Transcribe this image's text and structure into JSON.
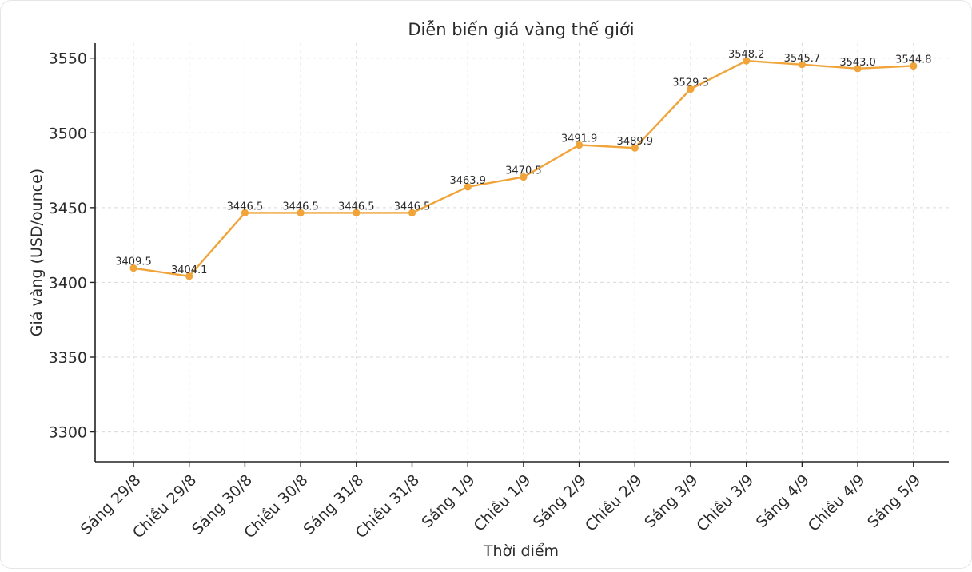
{
  "chart_data": {
    "type": "line",
    "title": "Diễn biến giá vàng thế giới",
    "xlabel": "Thời điểm",
    "ylabel": "Giá vàng (USD/ounce)",
    "categories": [
      "Sáng 29/8",
      "Chiều 29/8",
      "Sáng 30/8",
      "Chiều 30/8",
      "Sáng 31/8",
      "Chiều 31/8",
      "Sáng 1/9",
      "Chiều 1/9",
      "Sáng 2/9",
      "Chiều 2/9",
      "Sáng 3/9",
      "Chiều 3/9",
      "Sáng 4/9",
      "Chiều 4/9",
      "Sáng 5/9"
    ],
    "series": [
      {
        "values": [
          3409.5,
          3404.1,
          3446.5,
          3446.5,
          3446.5,
          3446.5,
          3463.9,
          3470.5,
          3491.9,
          3489.9,
          3529.3,
          3548.2,
          3545.7,
          3543.0,
          3544.8
        ],
        "color": "#F0A43A"
      }
    ],
    "data_labels": [
      "3409.5",
      "3404.1",
      "3446.5",
      "3446.5",
      "3446.5",
      "3446.5",
      "3463.9",
      "3470.5",
      "3491.9",
      "3489.9",
      "3529.3",
      "3548.2",
      "3545.7",
      "3543.0",
      "3544.8"
    ],
    "yticks": [
      3300,
      3350,
      3400,
      3450,
      3500,
      3550
    ],
    "ylim": [
      3280,
      3560
    ],
    "grid": true,
    "legend": "none"
  }
}
